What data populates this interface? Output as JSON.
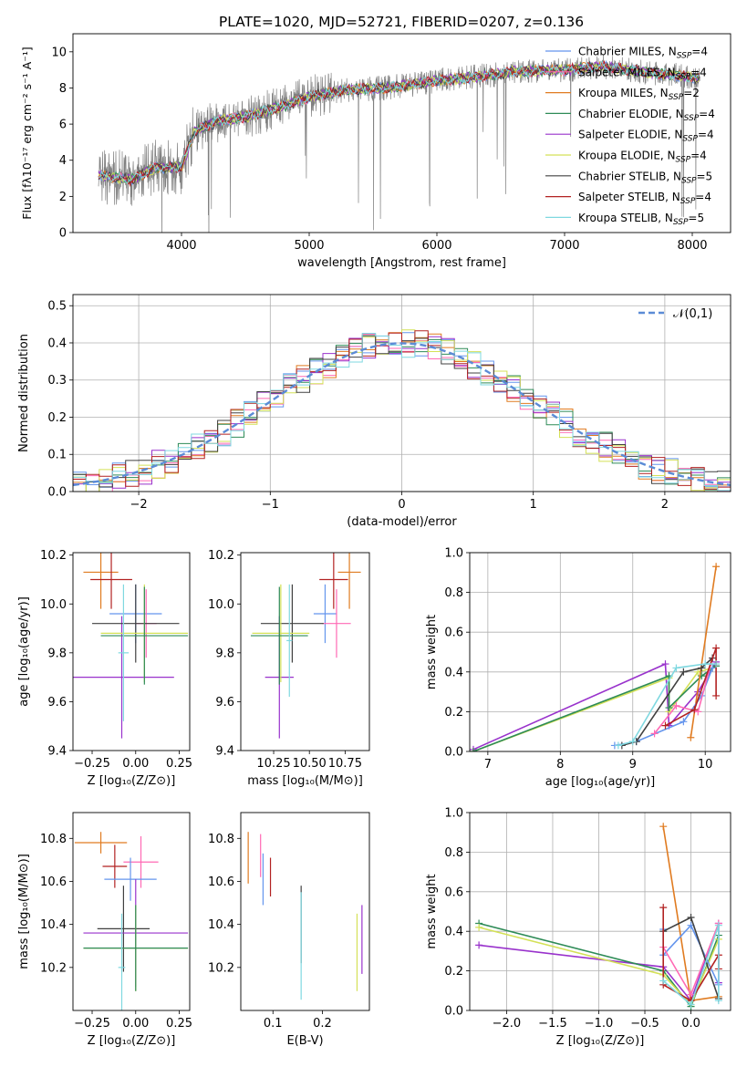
{
  "figure_title": "PLATE=1020, MJD=52721, FIBERID=0207, z=0.136",
  "legend": [
    {
      "label": "Chabrier MILES, N",
      "sub": "SSP",
      "suffix": "=4",
      "color": "#6495ed"
    },
    {
      "label": "Salpeter MILES, N",
      "sub": "SSP",
      "suffix": "=4",
      "color": "#ff69b4"
    },
    {
      "label": "Kroupa MILES, N",
      "sub": "SSP",
      "suffix": "=2",
      "color": "#e07b20"
    },
    {
      "label": "Chabrier ELODIE, N",
      "sub": "SSP",
      "suffix": "=4",
      "color": "#2e8b57"
    },
    {
      "label": "Salpeter ELODIE, N",
      "sub": "SSP",
      "suffix": "=4",
      "color": "#9932cc"
    },
    {
      "label": "Kroupa ELODIE, N",
      "sub": "SSP",
      "suffix": "=4",
      "color": "#d4e157"
    },
    {
      "label": "Chabrier STELIB, N",
      "sub": "SSP",
      "suffix": "=5",
      "color": "#404040"
    },
    {
      "label": "Salpeter STELIB, N",
      "sub": "SSP",
      "suffix": "=4",
      "color": "#b22222"
    },
    {
      "label": "Kroupa STELIB, N",
      "sub": "SSP",
      "suffix": "=5",
      "color": "#7fd8e0"
    }
  ],
  "chart_data": [
    {
      "id": "spectrum",
      "type": "line",
      "xlabel": "wavelength [Angstrom, rest frame]",
      "ylabel": "Flux [fλ10⁻¹⁷ erg cm⁻² s⁻¹ A⁻¹]",
      "xlim": [
        3150,
        8300
      ],
      "ylim": [
        0,
        11
      ],
      "xticks": [
        "4000",
        "5000",
        "6000",
        "7000",
        "8000"
      ],
      "yticks": [
        "0",
        "2",
        "4",
        "6",
        "8",
        "10"
      ],
      "grid": false,
      "data_color": "#808080",
      "continuum": {
        "x": [
          3350,
          3600,
          3800,
          4000,
          4100,
          4300,
          4500,
          4800,
          5000,
          5300,
          5600,
          6000,
          6300,
          6600,
          7000,
          7300,
          7600,
          8000,
          8050
        ],
        "y": [
          3.2,
          2.9,
          3.6,
          3.6,
          5.6,
          6.2,
          6.4,
          7.0,
          7.5,
          7.9,
          8.0,
          8.4,
          8.6,
          8.9,
          9.0,
          9.2,
          8.9,
          8.6,
          8.5
        ]
      }
    },
    {
      "id": "residuals",
      "type": "step",
      "xlabel": "(data-model)/error",
      "ylabel": "Normed distribution",
      "xlim": [
        -2.5,
        2.5
      ],
      "ylim": [
        0,
        0.53
      ],
      "xticks": [
        "-2",
        "-1",
        "0",
        "1",
        "2"
      ],
      "yticks": [
        "0.0",
        "0.1",
        "0.2",
        "0.3",
        "0.4",
        "0.5"
      ],
      "grid": true,
      "legend": "𝒩(0,1)",
      "gaussian_color": "#5b8bd6"
    },
    {
      "id": "age_vs_Z",
      "type": "errorbar",
      "xlabel": "Z [log₁₀(Z/Z⊙)]",
      "ylabel": "age  [log₁₀(age/yr)]",
      "xlim": [
        -0.36,
        0.31
      ],
      "ylim": [
        9.4,
        10.21
      ],
      "xticks": [
        "-0.25",
        "0.00",
        "0.25"
      ],
      "yticks": [
        "9.4",
        "9.6",
        "9.8",
        "10.0",
        "10.2"
      ],
      "points": [
        {
          "x": -0.08,
          "xerr": 0.3,
          "y": 9.7,
          "yerr": 0.25,
          "color": "#9932cc"
        },
        {
          "x": -0.2,
          "xerr": 0.1,
          "y": 10.13,
          "yerr": 0.15,
          "color": "#e07b20"
        },
        {
          "x": -0.14,
          "xerr": 0.12,
          "y": 10.1,
          "yerr": 0.12,
          "color": "#b22222"
        },
        {
          "x": 0.0,
          "xerr": 0.15,
          "y": 9.96,
          "yerr": 0.12,
          "color": "#6495ed"
        },
        {
          "x": 0.06,
          "xerr": 0.06,
          "y": 9.92,
          "yerr": 0.14,
          "color": "#ff69b4"
        },
        {
          "x": 0.0,
          "xerr": 0.25,
          "y": 9.92,
          "yerr": 0.16,
          "color": "#404040"
        },
        {
          "x": 0.05,
          "xerr": 0.25,
          "y": 9.88,
          "yerr": 0.2,
          "color": "#d4e157"
        },
        {
          "x": 0.05,
          "xerr": 0.25,
          "y": 9.87,
          "yerr": 0.2,
          "color": "#2e8b57"
        },
        {
          "x": -0.07,
          "xerr": 0.03,
          "y": 9.8,
          "yerr": 0.28,
          "color": "#7fd8e0"
        }
      ]
    },
    {
      "id": "age_vs_mass",
      "type": "errorbar",
      "xlabel": "mass [log₁₀(M/M⊙)]",
      "ylabel": "",
      "xlim": [
        10.02,
        10.92
      ],
      "ylim": [
        9.4,
        10.21
      ],
      "xticks": [
        "10.25",
        "10.50",
        "10.75"
      ],
      "yticks": [
        "9.4",
        "9.6",
        "9.8",
        "10.0",
        "10.2"
      ],
      "points": [
        {
          "x": 10.29,
          "xerr": 0.1,
          "y": 9.7,
          "yerr": 0.25,
          "color": "#9932cc"
        },
        {
          "x": 10.78,
          "xerr": 0.08,
          "y": 10.13,
          "yerr": 0.15,
          "color": "#e07b20"
        },
        {
          "x": 10.67,
          "xerr": 0.1,
          "y": 10.1,
          "yerr": 0.12,
          "color": "#b22222"
        },
        {
          "x": 10.61,
          "xerr": 0.08,
          "y": 9.96,
          "yerr": 0.12,
          "color": "#6495ed"
        },
        {
          "x": 10.69,
          "xerr": 0.1,
          "y": 9.92,
          "yerr": 0.14,
          "color": "#ff69b4"
        },
        {
          "x": 10.38,
          "xerr": 0.22,
          "y": 9.92,
          "yerr": 0.16,
          "color": "#404040"
        },
        {
          "x": 10.3,
          "xerr": 0.2,
          "y": 9.88,
          "yerr": 0.2,
          "color": "#d4e157"
        },
        {
          "x": 10.29,
          "xerr": 0.2,
          "y": 9.87,
          "yerr": 0.2,
          "color": "#2e8b57"
        },
        {
          "x": 10.36,
          "xerr": 0.02,
          "y": 9.85,
          "yerr": 0.23,
          "color": "#7fd8e0"
        }
      ]
    },
    {
      "id": "weight_vs_age",
      "type": "line",
      "xlabel": "age  [log₁₀(age/yr)]",
      "ylabel": "mass weight",
      "xlim": [
        6.75,
        10.35
      ],
      "ylim": [
        0,
        1
      ],
      "xticks": [
        "7",
        "8",
        "9",
        "10"
      ],
      "yticks": [
        "0.0",
        "0.2",
        "0.4",
        "0.6",
        "0.8",
        "1.0"
      ],
      "grid": true,
      "series": [
        {
          "color": "#9932cc",
          "x": [
            6.8,
            9.45,
            9.5,
            9.9,
            10.15
          ],
          "y": [
            0.01,
            0.44,
            0.13,
            0.3,
            0.45
          ]
        },
        {
          "color": "#d4e157",
          "x": [
            6.8,
            9.5,
            9.5,
            9.9,
            10.1
          ],
          "y": [
            0.0,
            0.37,
            0.2,
            0.4,
            0.42
          ]
        },
        {
          "color": "#2e8b57",
          "x": [
            6.8,
            9.5,
            9.5,
            9.95,
            10.15
          ],
          "y": [
            0.0,
            0.38,
            0.22,
            0.38,
            0.43
          ]
        },
        {
          "color": "#e07b20",
          "x": [
            9.8,
            10.15
          ],
          "y": [
            0.07,
            0.93
          ]
        },
        {
          "color": "#6495ed",
          "x": [
            8.75,
            9.05,
            9.7,
            9.95,
            10.1
          ],
          "y": [
            0.03,
            0.05,
            0.15,
            0.28,
            0.42
          ]
        },
        {
          "color": "#ff69b4",
          "x": [
            9.3,
            9.6,
            9.9,
            10.1
          ],
          "y": [
            0.09,
            0.23,
            0.2,
            0.47
          ]
        },
        {
          "color": "#404040",
          "x": [
            8.85,
            9.05,
            9.7,
            9.95,
            10.1
          ],
          "y": [
            0.03,
            0.05,
            0.4,
            0.42,
            0.47
          ]
        },
        {
          "color": "#b22222",
          "x": [
            9.45,
            9.85,
            10.15,
            10.15
          ],
          "y": [
            0.13,
            0.21,
            0.52,
            0.28
          ]
        },
        {
          "color": "#7fd8e0",
          "x": [
            8.8,
            9.0,
            9.6,
            10.0,
            10.15
          ],
          "y": [
            0.03,
            0.05,
            0.42,
            0.44,
            0.44
          ]
        }
      ]
    },
    {
      "id": "mass_vs_Z",
      "type": "errorbar",
      "xlabel": "Z [log₁₀(Z/Z⊙)]",
      "ylabel": "mass [log₁₀(M/M⊙)]",
      "xlim": [
        -0.36,
        0.31
      ],
      "ylim": [
        10.0,
        10.92
      ],
      "xticks": [
        "-0.25",
        "0.00",
        "0.25"
      ],
      "yticks": [
        "10.2",
        "10.4",
        "10.6",
        "10.8"
      ],
      "points": [
        {
          "x": -0.2,
          "xerr": 0.15,
          "y": 10.78,
          "yerr": 0.05,
          "color": "#e07b20"
        },
        {
          "x": 0.03,
          "xerr": 0.1,
          "y": 10.69,
          "yerr": 0.12,
          "color": "#ff69b4"
        },
        {
          "x": -0.12,
          "xerr": 0.07,
          "y": 10.67,
          "yerr": 0.1,
          "color": "#b22222"
        },
        {
          "x": -0.03,
          "xerr": 0.15,
          "y": 10.61,
          "yerr": 0.1,
          "color": "#6495ed"
        },
        {
          "x": -0.07,
          "xerr": 0.15,
          "y": 10.38,
          "yerr": 0.2,
          "color": "#404040"
        },
        {
          "x": 0.0,
          "xerr": 0.3,
          "y": 10.36,
          "yerr": 0.25,
          "color": "#9932cc"
        },
        {
          "x": 0.0,
          "xerr": 0.3,
          "y": 10.29,
          "yerr": 0.2,
          "color": "#d4e157"
        },
        {
          "x": 0.0,
          "xerr": 0.3,
          "y": 10.29,
          "yerr": 0.2,
          "color": "#2e8b57"
        },
        {
          "x": -0.08,
          "xerr": 0.02,
          "y": 10.2,
          "yerr": 0.25,
          "color": "#7fd8e0"
        }
      ]
    },
    {
      "id": "mass_vs_ebv",
      "type": "errorbar",
      "xlabel": "E(B-V)",
      "ylabel": "",
      "xlim": [
        0.035,
        0.295
      ],
      "ylim": [
        10.0,
        10.92
      ],
      "xticks": [
        "0.1",
        "0.2"
      ],
      "yticks": [
        "10.2",
        "10.4",
        "10.6",
        "10.8"
      ],
      "points": [
        {
          "x": 0.05,
          "xerr": 0,
          "y": 10.71,
          "yerr": 0.12,
          "color": "#e07b20"
        },
        {
          "x": 0.075,
          "xerr": 0,
          "y": 10.72,
          "yerr": 0.1,
          "color": "#ff69b4"
        },
        {
          "x": 0.08,
          "xerr": 0,
          "y": 10.61,
          "yerr": 0.12,
          "color": "#6495ed"
        },
        {
          "x": 0.095,
          "xerr": 0,
          "y": 10.62,
          "yerr": 0.09,
          "color": "#b22222"
        },
        {
          "x": 0.157,
          "xerr": 0,
          "y": 10.4,
          "yerr": 0.18,
          "color": "#404040"
        },
        {
          "x": 0.157,
          "xerr": 0,
          "y": 10.3,
          "yerr": 0.25,
          "color": "#7fd8e0"
        },
        {
          "x": 0.27,
          "xerr": 0,
          "y": 10.27,
          "yerr": 0.18,
          "color": "#d4e157"
        },
        {
          "x": 0.28,
          "xerr": 0,
          "y": 10.33,
          "yerr": 0.16,
          "color": "#9932cc"
        }
      ]
    },
    {
      "id": "weight_vs_Z",
      "type": "line",
      "xlabel": "Z [log₁₀(Z/Z⊙)]",
      "ylabel": "mass weight",
      "xlim": [
        -2.4,
        0.43
      ],
      "ylim": [
        0,
        1
      ],
      "xticks": [
        "-2.0",
        "-1.5",
        "-1.0",
        "-0.5",
        "0.0"
      ],
      "yticks": [
        "0.0",
        "0.2",
        "0.4",
        "0.6",
        "0.8",
        "1.0"
      ],
      "grid": true,
      "series": [
        {
          "color": "#9932cc",
          "x": [
            -2.3,
            -0.3,
            0.0,
            0.3,
            0.3
          ],
          "y": [
            0.33,
            0.22,
            0.05,
            0.44,
            0.14
          ]
        },
        {
          "color": "#2e8b57",
          "x": [
            -2.3,
            -0.3,
            0.0,
            0.3
          ],
          "y": [
            0.44,
            0.2,
            0.02,
            0.38
          ]
        },
        {
          "color": "#d4e157",
          "x": [
            -2.3,
            -0.3,
            0.0,
            0.3
          ],
          "y": [
            0.42,
            0.18,
            0.03,
            0.36
          ]
        },
        {
          "color": "#e07b20",
          "x": [
            -0.3,
            0.0,
            0.3
          ],
          "y": [
            0.93,
            0.05,
            0.07
          ]
        },
        {
          "color": "#6495ed",
          "x": [
            -0.3,
            -0.3,
            0.0,
            0.3
          ],
          "y": [
            0.41,
            0.28,
            0.43,
            0.13
          ]
        },
        {
          "color": "#ff69b4",
          "x": [
            -0.3,
            0.0,
            0.3
          ],
          "y": [
            0.32,
            0.08,
            0.44
          ]
        },
        {
          "color": "#404040",
          "x": [
            -0.3,
            0.0,
            0.3
          ],
          "y": [
            0.4,
            0.47,
            0.06
          ]
        },
        {
          "color": "#b22222",
          "x": [
            -0.3,
            -0.3,
            0.0,
            0.3,
            0.3
          ],
          "y": [
            0.52,
            0.13,
            0.05,
            0.28,
            0.21
          ]
        },
        {
          "color": "#7fd8e0",
          "x": [
            -0.3,
            0.0,
            0.3,
            0.3
          ],
          "y": [
            0.15,
            0.03,
            0.43,
            0.05
          ]
        }
      ]
    }
  ]
}
